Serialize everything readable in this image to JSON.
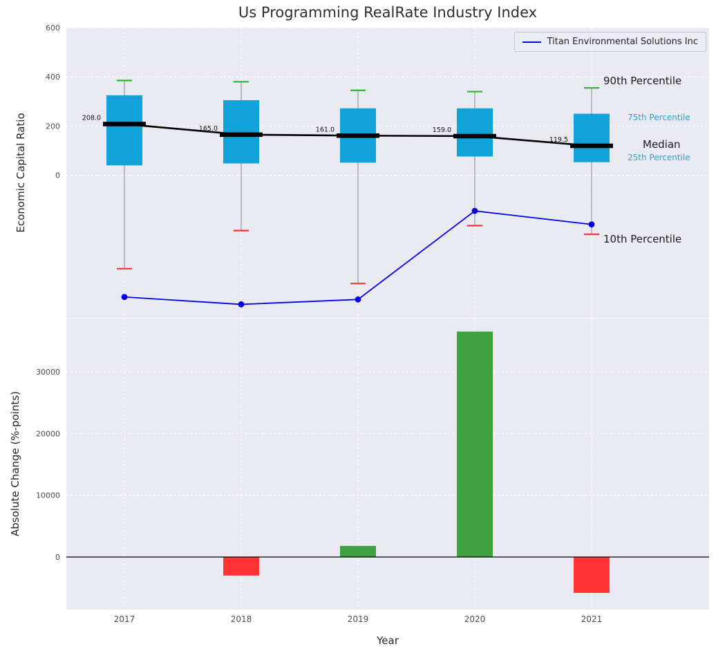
{
  "title": "Us Programming RealRate Industry Index",
  "axes": {
    "xlabel": "Year",
    "top_ylabel": "Economic Capital Ratio",
    "bottom_ylabel": "Absolute Change (%-points)"
  },
  "legend": {
    "label": "Titan Environmental Solutions Inc",
    "line_color": "#0000ee"
  },
  "annotations": {
    "p90": "90th Percentile",
    "p75": "75th Percentile",
    "median": "Median",
    "p25": "25th Percentile",
    "p10": "10th Percentile"
  },
  "colors": {
    "panel_bg": "#eaeaf2",
    "grid": "#ffffff",
    "tick": "#4d4d4d",
    "box": "#10a2d8",
    "median_line": "#000000",
    "p90_cap": "#2bb52b",
    "p10_cap": "#ff3333",
    "whisker": "#8a8a8a",
    "series_line": "#0000ee",
    "bar_positive": "#3fa13f",
    "bar_negative": "#ff3333",
    "cyan_label": "#1fa8cf"
  },
  "chart_data": [
    {
      "type": "boxplot+line",
      "title": "Us Programming RealRate Industry Index",
      "ylabel": "Economic Capital Ratio",
      "categories": [
        "2017",
        "2018",
        "2019",
        "2020",
        "2021"
      ],
      "yticks": [
        0,
        200,
        400,
        600
      ],
      "ylim": [
        -580,
        600
      ],
      "grid": true,
      "legend_position": "upper right",
      "boxes": {
        "p90": [
          385,
          380,
          345,
          340,
          355
        ],
        "q3": [
          325,
          305,
          272,
          272,
          250
        ],
        "median": [
          208.0,
          165.0,
          161.0,
          159.0,
          119.5
        ],
        "q1": [
          40,
          48,
          51,
          76,
          53
        ],
        "p10": [
          -380,
          -225,
          -440,
          -205,
          -240
        ]
      },
      "median_labels": [
        "208.0",
        "165.0",
        "161.0",
        "159.0",
        "119.5"
      ],
      "series": [
        {
          "name": "Titan Environmental Solutions Inc",
          "values": [
            -495,
            -525,
            -505,
            -145,
            -200
          ],
          "color": "#0000ee",
          "marker": "circle"
        }
      ]
    },
    {
      "type": "bar",
      "ylabel": "Absolute Change (%-points)",
      "xlabel": "Year",
      "categories": [
        "2017",
        "2018",
        "2019",
        "2020",
        "2021"
      ],
      "values": [
        0,
        -3000,
        1800,
        36500,
        -5800
      ],
      "yticks": [
        0,
        10000,
        20000,
        30000
      ],
      "ylim": [
        -8500,
        38600
      ],
      "grid": true,
      "positive_color": "#3fa13f",
      "negative_color": "#ff3333"
    }
  ]
}
